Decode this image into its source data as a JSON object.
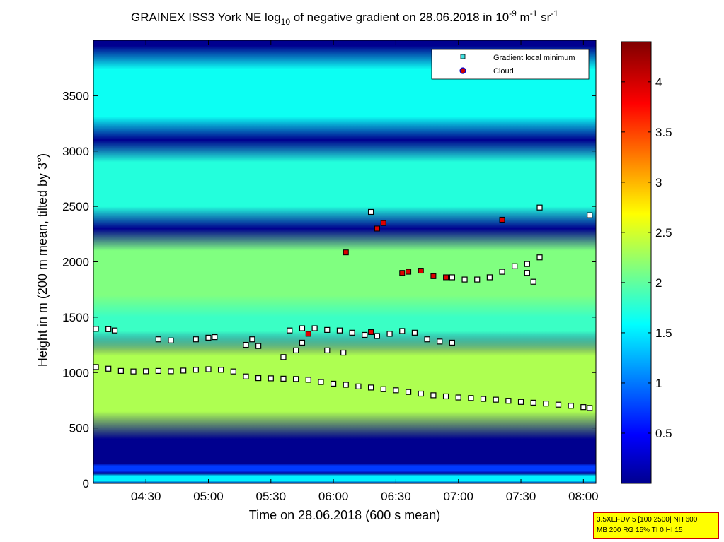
{
  "chart_data": {
    "type": "heatmap",
    "title_parts": {
      "t1": "GRAINEX ISS3 York NE log",
      "sub1": "10",
      "t2": " of negative gradient on 28.06.2018 in 10",
      "sup1": "-9",
      "t3": " m",
      "sup2": "-1",
      "t4": " sr",
      "sup3": "-1"
    },
    "xlabel": "Time on 28.06.2018 (600 s mean)",
    "ylabel": "Height in m (200 m mean, tilted by 3°)",
    "x_range_hours": [
      4.08,
      8.1
    ],
    "x_ticks": [
      {
        "label": "04:30",
        "hours": 4.5
      },
      {
        "label": "05:00",
        "hours": 5.0
      },
      {
        "label": "05:30",
        "hours": 5.5
      },
      {
        "label": "06:00",
        "hours": 6.0
      },
      {
        "label": "06:30",
        "hours": 6.5
      },
      {
        "label": "07:00",
        "hours": 7.0
      },
      {
        "label": "07:30",
        "hours": 7.5
      },
      {
        "label": "08:00",
        "hours": 8.0
      }
    ],
    "ylim": [
      0,
      4000
    ],
    "y_ticks": [
      0,
      500,
      1000,
      1500,
      2000,
      2500,
      3000,
      3500
    ],
    "y_tick_labels": [
      "0",
      "500",
      "1000",
      "1500",
      "2000",
      "2500",
      "3000",
      "3500"
    ],
    "colorbar": {
      "colormap": "jet",
      "range": [
        0,
        4.4
      ],
      "ticks": [
        0.5,
        1,
        1.5,
        2,
        2.5,
        3,
        3.5,
        4
      ],
      "tick_labels": [
        "0.5",
        "1",
        "1.5",
        "2",
        "2.5",
        "3",
        "3.5",
        "4"
      ]
    },
    "legend": {
      "placement": "top-right",
      "entries": [
        {
          "label": "Gradient local minimum",
          "color": "#40e0e0",
          "marker": "square"
        },
        {
          "label": "Cloud",
          "color": "#cc0000",
          "edge": "#0000cc",
          "marker": "circle"
        }
      ]
    },
    "background_value": 0.1,
    "field_bands": [
      {
        "h0": 0,
        "h1": 90,
        "v": 1.6
      },
      {
        "h0": 90,
        "h1": 180,
        "v": 0.8
      },
      {
        "h0": 400,
        "h1": 1400,
        "v": 2.4
      },
      {
        "h0": 1200,
        "h1": 1900,
        "v": 1.9
      },
      {
        "h0": 1500,
        "h1": 2300,
        "v": 2.2
      },
      {
        "h0": 2300,
        "h1": 3100,
        "v": 1.8
      },
      {
        "h0": 3100,
        "h1": 3950,
        "v": 1.7
      }
    ],
    "series": [
      {
        "name": "Gradient local minimum",
        "points": [
          [
            4.1,
            1050
          ],
          [
            4.2,
            1035
          ],
          [
            4.3,
            1015
          ],
          [
            4.4,
            1010
          ],
          [
            4.5,
            1012
          ],
          [
            4.6,
            1015
          ],
          [
            4.7,
            1012
          ],
          [
            4.8,
            1018
          ],
          [
            4.9,
            1025
          ],
          [
            5.0,
            1030
          ],
          [
            5.1,
            1025
          ],
          [
            5.2,
            1010
          ],
          [
            5.3,
            965
          ],
          [
            5.4,
            950
          ],
          [
            5.5,
            948
          ],
          [
            5.6,
            945
          ],
          [
            5.7,
            942
          ],
          [
            5.8,
            935
          ],
          [
            5.9,
            915
          ],
          [
            6.0,
            900
          ],
          [
            6.1,
            890
          ],
          [
            6.2,
            875
          ],
          [
            6.3,
            865
          ],
          [
            6.4,
            850
          ],
          [
            6.5,
            840
          ],
          [
            6.6,
            825
          ],
          [
            6.7,
            810
          ],
          [
            6.8,
            795
          ],
          [
            6.9,
            785
          ],
          [
            7.0,
            775
          ],
          [
            7.1,
            770
          ],
          [
            7.2,
            762
          ],
          [
            7.3,
            755
          ],
          [
            7.4,
            745
          ],
          [
            7.5,
            735
          ],
          [
            7.6,
            728
          ],
          [
            7.7,
            720
          ],
          [
            7.8,
            710
          ],
          [
            7.9,
            700
          ],
          [
            8.0,
            688
          ],
          [
            8.05,
            680
          ],
          [
            4.1,
            1395
          ],
          [
            4.2,
            1392
          ],
          [
            4.25,
            1380
          ],
          [
            4.6,
            1300
          ],
          [
            4.7,
            1290
          ],
          [
            4.9,
            1300
          ],
          [
            5.0,
            1315
          ],
          [
            5.05,
            1320
          ],
          [
            5.3,
            1250
          ],
          [
            5.35,
            1300
          ],
          [
            5.4,
            1240
          ],
          [
            5.65,
            1380
          ],
          [
            5.75,
            1400
          ],
          [
            5.85,
            1400
          ],
          [
            5.95,
            1385
          ],
          [
            6.05,
            1380
          ],
          [
            6.15,
            1360
          ],
          [
            6.25,
            1340
          ],
          [
            6.35,
            1330
          ],
          [
            6.45,
            1350
          ],
          [
            6.55,
            1375
          ],
          [
            6.65,
            1360
          ],
          [
            6.75,
            1300
          ],
          [
            6.85,
            1280
          ],
          [
            6.95,
            1270
          ],
          [
            5.75,
            1270
          ],
          [
            5.7,
            1200
          ],
          [
            5.6,
            1140
          ],
          [
            5.95,
            1200
          ],
          [
            6.08,
            1180
          ],
          [
            6.95,
            1860
          ],
          [
            7.05,
            1840
          ],
          [
            7.15,
            1840
          ],
          [
            7.25,
            1860
          ],
          [
            7.35,
            1910
          ],
          [
            7.45,
            1960
          ],
          [
            7.55,
            1980
          ],
          [
            7.65,
            2040
          ],
          [
            7.55,
            1900
          ],
          [
            7.6,
            1820
          ],
          [
            7.65,
            2490
          ],
          [
            8.05,
            2420
          ],
          [
            6.3,
            2450
          ]
        ]
      },
      {
        "name": "Cloud",
        "points": [
          [
            6.1,
            2085
          ],
          [
            6.35,
            2300
          ],
          [
            6.4,
            2350
          ],
          [
            6.55,
            1900
          ],
          [
            6.6,
            1910
          ],
          [
            6.7,
            1920
          ],
          [
            6.8,
            1870
          ],
          [
            6.9,
            1860
          ],
          [
            7.35,
            2380
          ],
          [
            6.3,
            1365
          ],
          [
            5.8,
            1350
          ]
        ]
      }
    ]
  },
  "stamp": {
    "line1": "3.5XEFUV 5 [100 2500] NH 600",
    "line2": "MB 200 RG 15% TI 0 HI 15"
  }
}
